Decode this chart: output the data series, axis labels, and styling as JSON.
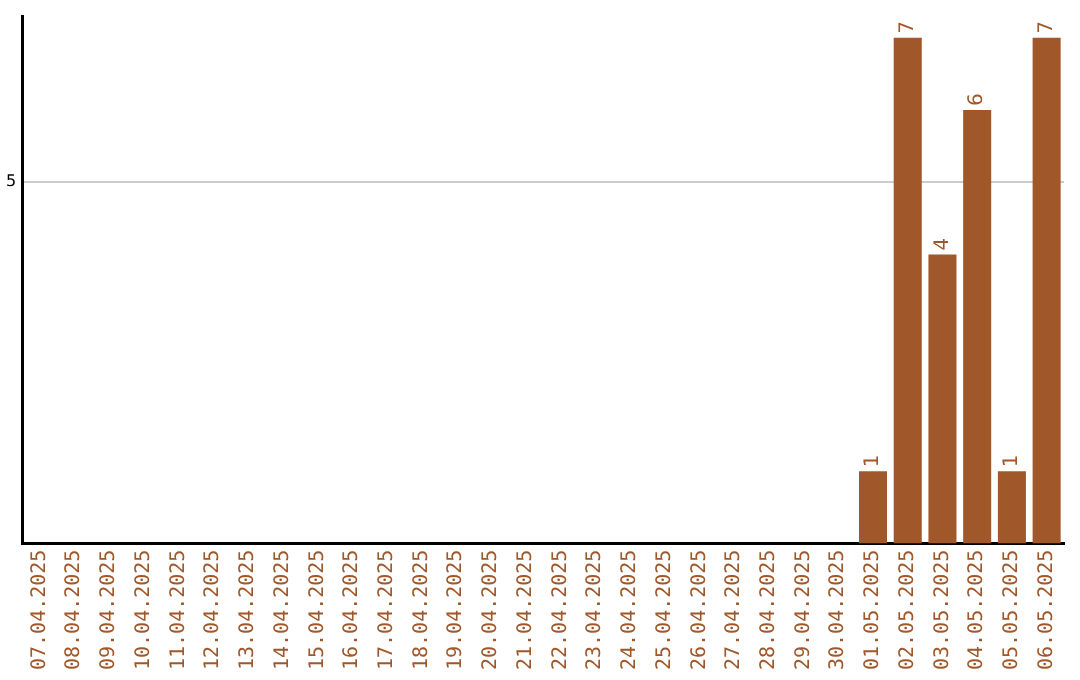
{
  "chart_data": {
    "type": "bar",
    "categories": [
      "07.04.2025",
      "08.04.2025",
      "09.04.2025",
      "10.04.2025",
      "11.04.2025",
      "12.04.2025",
      "13.04.2025",
      "14.04.2025",
      "15.04.2025",
      "16.04.2025",
      "17.04.2025",
      "18.04.2025",
      "19.04.2025",
      "20.04.2025",
      "21.04.2025",
      "22.04.2025",
      "23.04.2025",
      "24.04.2025",
      "25.04.2025",
      "26.04.2025",
      "27.04.2025",
      "28.04.2025",
      "29.04.2025",
      "30.04.2025",
      "01.05.2025",
      "02.05.2025",
      "03.05.2025",
      "04.05.2025",
      "05.05.2025",
      "06.05.2025"
    ],
    "values": [
      null,
      null,
      null,
      null,
      null,
      null,
      null,
      null,
      null,
      null,
      null,
      null,
      null,
      null,
      null,
      null,
      null,
      null,
      null,
      null,
      null,
      null,
      null,
      null,
      1,
      7,
      4,
      6,
      1,
      7
    ],
    "value_labels": [
      null,
      null,
      null,
      null,
      null,
      null,
      null,
      null,
      null,
      null,
      null,
      null,
      null,
      null,
      null,
      null,
      null,
      null,
      null,
      null,
      null,
      null,
      null,
      null,
      "1",
      "7",
      "4",
      "6",
      "1",
      "7"
    ],
    "color": "#a0572a",
    "ylim": [
      0,
      7.3
    ],
    "yticks": [
      5
    ],
    "grid": "y",
    "legend": false
  }
}
